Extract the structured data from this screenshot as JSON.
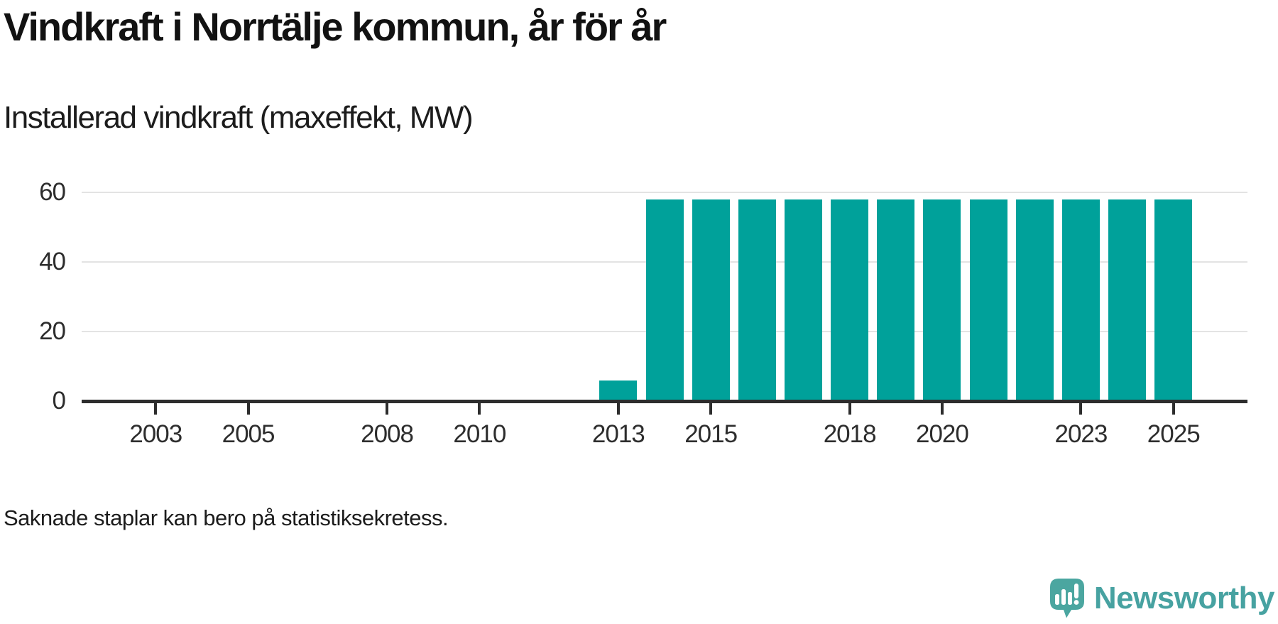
{
  "header": {
    "title": "Vindkraft i Norrtälje kommun, år för år",
    "subtitle": "Installerad vindkraft (maxeffekt, MW)"
  },
  "footer": {
    "note": "Saknade staplar kan bero på statistiksekretess.",
    "brand": {
      "name": "Newsworthy",
      "icon": "newsworthy-speech-bubble-bar-chart-icon",
      "icon_color": "#4ba6a0",
      "text_color": "#47a2a1"
    }
  },
  "chart_data": {
    "type": "bar",
    "title": "Vindkraft i Norrtälje kommun, år för år",
    "subtitle": "Installerad vindkraft (maxeffekt, MW)",
    "xlabel": "",
    "ylabel": "Installerad vindkraft (maxeffekt, MW)",
    "unit": "MW",
    "categories": [
      2002,
      2003,
      2004,
      2005,
      2006,
      2007,
      2008,
      2009,
      2010,
      2011,
      2012,
      2013,
      2014,
      2015,
      2016,
      2017,
      2018,
      2019,
      2020,
      2021,
      2022,
      2023,
      2024,
      2025
    ],
    "values": [
      null,
      null,
      null,
      null,
      null,
      null,
      null,
      null,
      null,
      null,
      null,
      6,
      58,
      58,
      58,
      58,
      58,
      58,
      58,
      58,
      58,
      58,
      58,
      58
    ],
    "missing_years_note": "2002-2012 have no bars (missing data)",
    "x_ticks": [
      2003,
      2005,
      2008,
      2010,
      2013,
      2015,
      2018,
      2020,
      2023,
      2025
    ],
    "y_ticks": [
      0,
      20,
      40,
      60
    ],
    "ylim": [
      0,
      60
    ],
    "xlim": [
      2001.4,
      2026.6
    ],
    "grid": "horizontal",
    "legend": "none",
    "bar_color": "#00a19a",
    "gridline_color": "#e3e3e3",
    "axis_color": "#2d2d2d",
    "tick_label_color": "#2d2d2d"
  }
}
